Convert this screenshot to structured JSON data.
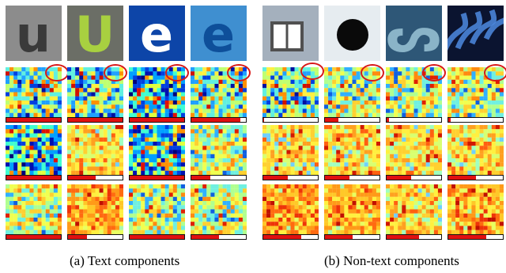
{
  "panels": [
    {
      "caption": "(a) Text components",
      "patches": [
        {
          "name": "letter-u-dark",
          "bg": "#8c8c8c",
          "glyph": "u",
          "glyph_color": "#3a3a3a"
        },
        {
          "name": "letter-u-green",
          "bg": "#6b6e66",
          "glyph": "U",
          "glyph_color": "#a8d040"
        },
        {
          "name": "letter-e-blue",
          "bg": "#0d45a8",
          "glyph": "e",
          "glyph_color": "#ffffff"
        },
        {
          "name": "letter-e-light",
          "bg": "#3f8fd0",
          "glyph": "e",
          "glyph_color": "#0e4f9a"
        }
      ],
      "rows": [
        {
          "bars": [
            1.0,
            1.0,
            1.0,
            0.9
          ],
          "palettes": [
            "blue",
            "blue",
            "deep",
            "blue"
          ]
        },
        {
          "bars": [
            1.0,
            0.5,
            1.0,
            0.35
          ],
          "palettes": [
            "deep",
            "warm",
            "deep",
            "teal"
          ]
        },
        {
          "bars": [
            1.0,
            0.35,
            1.0,
            0.5
          ],
          "palettes": [
            "teal",
            "hot",
            "teal",
            "teal"
          ]
        }
      ]
    },
    {
      "caption": "(b) Non-text components",
      "patches": [
        {
          "name": "building-window",
          "bg": "#a4b0bd",
          "glyph": "",
          "glyph_color": "#4a5560"
        },
        {
          "name": "black-disc",
          "bg": "#e6ecf0",
          "glyph": "●",
          "glyph_color": "#0a0a0a"
        },
        {
          "name": "curved-stroke",
          "bg": "#2e5777",
          "glyph": "ᔕ",
          "glyph_color": "#8ab4c8"
        },
        {
          "name": "swan-graphic",
          "bg": "#0b1430",
          "glyph": "~",
          "glyph_color": "#4e8ae0"
        }
      ],
      "rows": [
        {
          "bars": [
            0.02,
            0.25,
            0.05,
            0.05
          ],
          "palettes": [
            "blue",
            "teal",
            "teal",
            "teal"
          ]
        },
        {
          "bars": [
            0.45,
            0.45,
            0.45,
            0.5
          ],
          "palettes": [
            "warm",
            "warm",
            "warm",
            "warm"
          ]
        },
        {
          "bars": [
            0.7,
            0.5,
            0.6,
            0.7
          ],
          "palettes": [
            "hot",
            "hot",
            "warm",
            "hot"
          ]
        }
      ]
    }
  ]
}
